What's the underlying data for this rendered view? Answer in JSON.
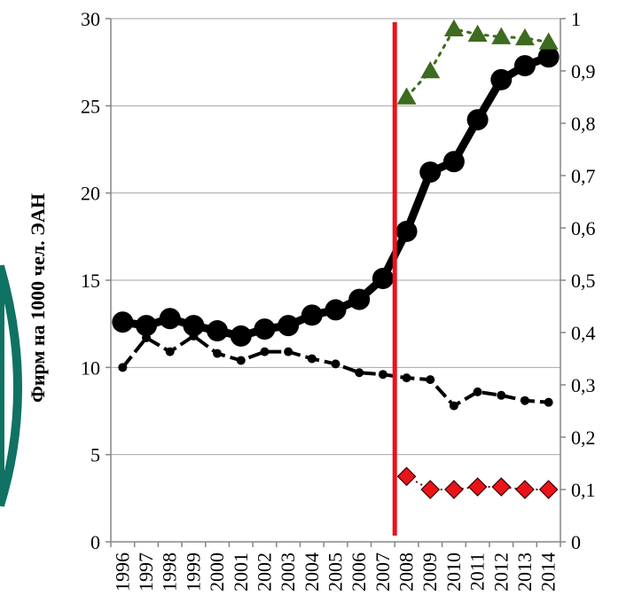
{
  "chart_data": {
    "type": "line",
    "title": "",
    "ylabel": "Фирм на 1000 чел. ЭАН",
    "y2label": "",
    "ylim": [
      0,
      30
    ],
    "y2lim": [
      0,
      1
    ],
    "yticks": [
      "0",
      "5",
      "10",
      "15",
      "20",
      "25",
      "30"
    ],
    "y2ticks": [
      "0",
      "0,1",
      "0,2",
      "0,3",
      "0,4",
      "0,5",
      "0,6",
      "0,7",
      "0,8",
      "0,9",
      "1"
    ],
    "categories": [
      "1996",
      "1997",
      "1998",
      "1999",
      "2000",
      "2001",
      "2002",
      "2003",
      "2004",
      "2005",
      "2006",
      "2007",
      "2008",
      "2009",
      "2010",
      "2011",
      "2012",
      "2013",
      "2014"
    ],
    "grid": true,
    "vertical_marker": {
      "between": [
        "2007",
        "2008"
      ],
      "color": "#e8141a"
    },
    "series": [
      {
        "axis": "left",
        "style": "thick-solid-circle",
        "color": "#000000",
        "values": [
          12.6,
          12.4,
          12.8,
          12.4,
          12.1,
          11.8,
          12.2,
          12.4,
          13.0,
          13.3,
          13.9,
          15.1,
          17.8,
          21.2,
          21.8,
          24.2,
          26.5,
          27.3,
          27.8
        ]
      },
      {
        "axis": "left",
        "style": "dashed-small-circle",
        "color": "#000000",
        "values": [
          10.0,
          11.7,
          10.9,
          11.8,
          10.8,
          10.4,
          10.9,
          10.9,
          10.5,
          10.2,
          9.7,
          9.6,
          9.4,
          9.3,
          7.8,
          8.6,
          8.4,
          8.1,
          8.0
        ]
      },
      {
        "axis": "right",
        "style": "dotted-triangle",
        "color": "#3d6b1f",
        "values": [
          null,
          null,
          null,
          null,
          null,
          null,
          null,
          null,
          null,
          null,
          null,
          null,
          0.85,
          0.9,
          0.98,
          0.97,
          0.965,
          0.963,
          0.955
        ]
      },
      {
        "axis": "right",
        "style": "diamond",
        "color": "#e8141a",
        "values": [
          null,
          null,
          null,
          null,
          null,
          null,
          null,
          null,
          null,
          null,
          null,
          null,
          0.125,
          0.1,
          0.1,
          0.105,
          0.105,
          0.1,
          0.1
        ]
      }
    ]
  }
}
